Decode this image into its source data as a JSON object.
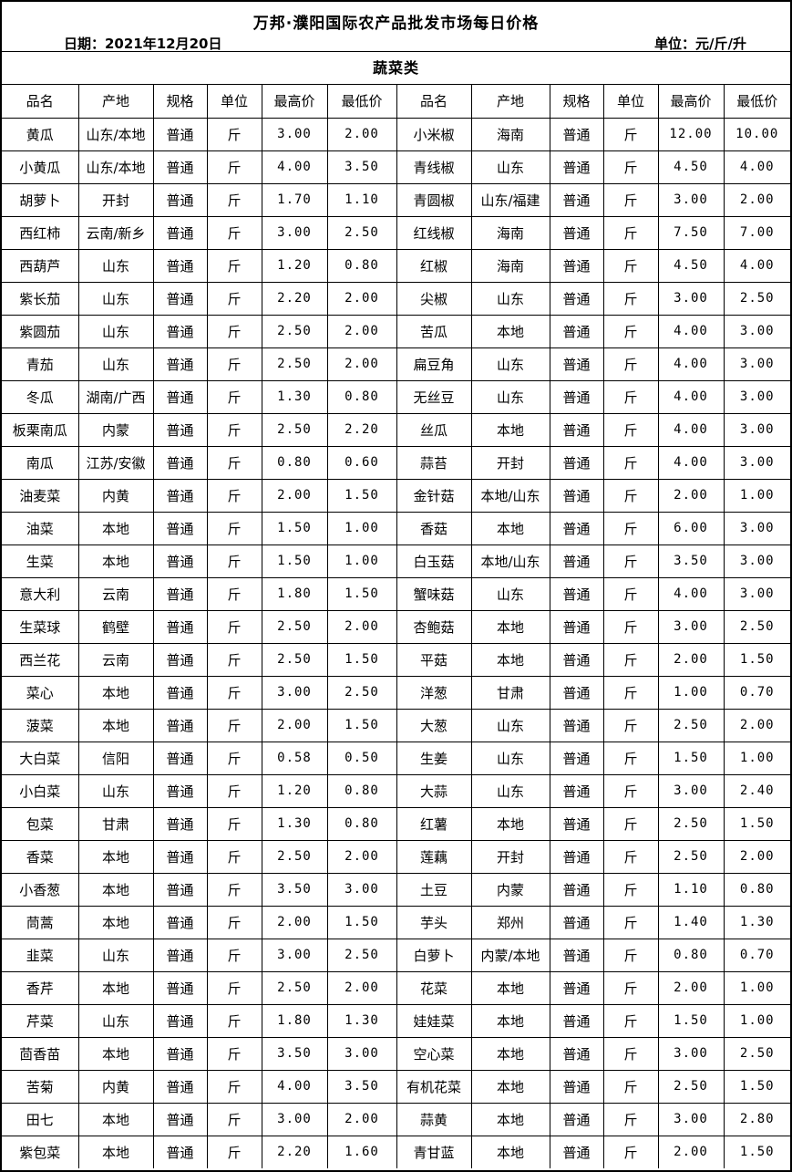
{
  "header": {
    "title": "万邦·濮阳国际农产品批发市场每日价格",
    "date_label": "日期：2021年12月20日",
    "unit_label": "单位：元/斤/升"
  },
  "category": "蔬菜类",
  "columns": [
    "品名",
    "产地",
    "规格",
    "单位",
    "最高价",
    "最低价"
  ],
  "colors": {
    "border": "#000000",
    "background": "#ffffff",
    "text": "#000000"
  },
  "rows_left": [
    [
      "黄瓜",
      "山东/本地",
      "普通",
      "斤",
      "3.00",
      "2.00"
    ],
    [
      "小黄瓜",
      "山东/本地",
      "普通",
      "斤",
      "4.00",
      "3.50"
    ],
    [
      "胡萝卜",
      "开封",
      "普通",
      "斤",
      "1.70",
      "1.10"
    ],
    [
      "西红柿",
      "云南/新乡",
      "普通",
      "斤",
      "3.00",
      "2.50"
    ],
    [
      "西葫芦",
      "山东",
      "普通",
      "斤",
      "1.20",
      "0.80"
    ],
    [
      "紫长茄",
      "山东",
      "普通",
      "斤",
      "2.20",
      "2.00"
    ],
    [
      "紫圆茄",
      "山东",
      "普通",
      "斤",
      "2.50",
      "2.00"
    ],
    [
      "青茄",
      "山东",
      "普通",
      "斤",
      "2.50",
      "2.00"
    ],
    [
      "冬瓜",
      "湖南/广西",
      "普通",
      "斤",
      "1.30",
      "0.80"
    ],
    [
      "板栗南瓜",
      "内蒙",
      "普通",
      "斤",
      "2.50",
      "2.20"
    ],
    [
      "南瓜",
      "江苏/安徽",
      "普通",
      "斤",
      "0.80",
      "0.60"
    ],
    [
      "油麦菜",
      "内黄",
      "普通",
      "斤",
      "2.00",
      "1.50"
    ],
    [
      "油菜",
      "本地",
      "普通",
      "斤",
      "1.50",
      "1.00"
    ],
    [
      "生菜",
      "本地",
      "普通",
      "斤",
      "1.50",
      "1.00"
    ],
    [
      "意大利",
      "云南",
      "普通",
      "斤",
      "1.80",
      "1.50"
    ],
    [
      "生菜球",
      "鹤壁",
      "普通",
      "斤",
      "2.50",
      "2.00"
    ],
    [
      "西兰花",
      "云南",
      "普通",
      "斤",
      "2.50",
      "1.50"
    ],
    [
      "菜心",
      "本地",
      "普通",
      "斤",
      "3.00",
      "2.50"
    ],
    [
      "菠菜",
      "本地",
      "普通",
      "斤",
      "2.00",
      "1.50"
    ],
    [
      "大白菜",
      "信阳",
      "普通",
      "斤",
      "0.58",
      "0.50"
    ],
    [
      "小白菜",
      "山东",
      "普通",
      "斤",
      "1.20",
      "0.80"
    ],
    [
      "包菜",
      "甘肃",
      "普通",
      "斤",
      "1.30",
      "0.80"
    ],
    [
      "香菜",
      "本地",
      "普通",
      "斤",
      "2.50",
      "2.00"
    ],
    [
      "小香葱",
      "本地",
      "普通",
      "斤",
      "3.50",
      "3.00"
    ],
    [
      "茼蒿",
      "本地",
      "普通",
      "斤",
      "2.00",
      "1.50"
    ],
    [
      "韭菜",
      "山东",
      "普通",
      "斤",
      "3.00",
      "2.50"
    ],
    [
      "香芹",
      "本地",
      "普通",
      "斤",
      "2.50",
      "2.00"
    ],
    [
      "芹菜",
      "山东",
      "普通",
      "斤",
      "1.80",
      "1.30"
    ],
    [
      "茴香苗",
      "本地",
      "普通",
      "斤",
      "3.50",
      "3.00"
    ],
    [
      "苦菊",
      "内黄",
      "普通",
      "斤",
      "4.00",
      "3.50"
    ],
    [
      "田七",
      "本地",
      "普通",
      "斤",
      "3.00",
      "2.00"
    ],
    [
      "紫包菜",
      "本地",
      "普通",
      "斤",
      "2.20",
      "1.60"
    ]
  ],
  "rows_right": [
    [
      "小米椒",
      "海南",
      "普通",
      "斤",
      "12.00",
      "10.00"
    ],
    [
      "青线椒",
      "山东",
      "普通",
      "斤",
      "4.50",
      "4.00"
    ],
    [
      "青圆椒",
      "山东/福建",
      "普通",
      "斤",
      "3.00",
      "2.00"
    ],
    [
      "红线椒",
      "海南",
      "普通",
      "斤",
      "7.50",
      "7.00"
    ],
    [
      "红椒",
      "海南",
      "普通",
      "斤",
      "4.50",
      "4.00"
    ],
    [
      "尖椒",
      "山东",
      "普通",
      "斤",
      "3.00",
      "2.50"
    ],
    [
      "苦瓜",
      "本地",
      "普通",
      "斤",
      "4.00",
      "3.00"
    ],
    [
      "扁豆角",
      "山东",
      "普通",
      "斤",
      "4.00",
      "3.00"
    ],
    [
      "无丝豆",
      "山东",
      "普通",
      "斤",
      "4.00",
      "3.00"
    ],
    [
      "丝瓜",
      "本地",
      "普通",
      "斤",
      "4.00",
      "3.00"
    ],
    [
      "蒜苔",
      "开封",
      "普通",
      "斤",
      "4.00",
      "3.00"
    ],
    [
      "金针菇",
      "本地/山东",
      "普通",
      "斤",
      "2.00",
      "1.00"
    ],
    [
      "香菇",
      "本地",
      "普通",
      "斤",
      "6.00",
      "3.00"
    ],
    [
      "白玉菇",
      "本地/山东",
      "普通",
      "斤",
      "3.50",
      "3.00"
    ],
    [
      "蟹味菇",
      "山东",
      "普通",
      "斤",
      "4.00",
      "3.00"
    ],
    [
      "杏鲍菇",
      "本地",
      "普通",
      "斤",
      "3.00",
      "2.50"
    ],
    [
      "平菇",
      "本地",
      "普通",
      "斤",
      "2.00",
      "1.50"
    ],
    [
      "洋葱",
      "甘肃",
      "普通",
      "斤",
      "1.00",
      "0.70"
    ],
    [
      "大葱",
      "山东",
      "普通",
      "斤",
      "2.50",
      "2.00"
    ],
    [
      "生姜",
      "山东",
      "普通",
      "斤",
      "1.50",
      "1.00"
    ],
    [
      "大蒜",
      "山东",
      "普通",
      "斤",
      "3.00",
      "2.40"
    ],
    [
      "红薯",
      "本地",
      "普通",
      "斤",
      "2.50",
      "1.50"
    ],
    [
      "莲藕",
      "开封",
      "普通",
      "斤",
      "2.50",
      "2.00"
    ],
    [
      "土豆",
      "内蒙",
      "普通",
      "斤",
      "1.10",
      "0.80"
    ],
    [
      "芋头",
      "郑州",
      "普通",
      "斤",
      "1.40",
      "1.30"
    ],
    [
      "白萝卜",
      "内蒙/本地",
      "普通",
      "斤",
      "0.80",
      "0.70"
    ],
    [
      "花菜",
      "本地",
      "普通",
      "斤",
      "2.00",
      "1.00"
    ],
    [
      "娃娃菜",
      "本地",
      "普通",
      "斤",
      "1.50",
      "1.00"
    ],
    [
      "空心菜",
      "本地",
      "普通",
      "斤",
      "3.00",
      "2.50"
    ],
    [
      "有机花菜",
      "本地",
      "普通",
      "斤",
      "2.50",
      "1.50"
    ],
    [
      "蒜黄",
      "本地",
      "普通",
      "斤",
      "3.00",
      "2.80"
    ],
    [
      "青甘蓝",
      "本地",
      "普通",
      "斤",
      "2.00",
      "1.50"
    ]
  ]
}
